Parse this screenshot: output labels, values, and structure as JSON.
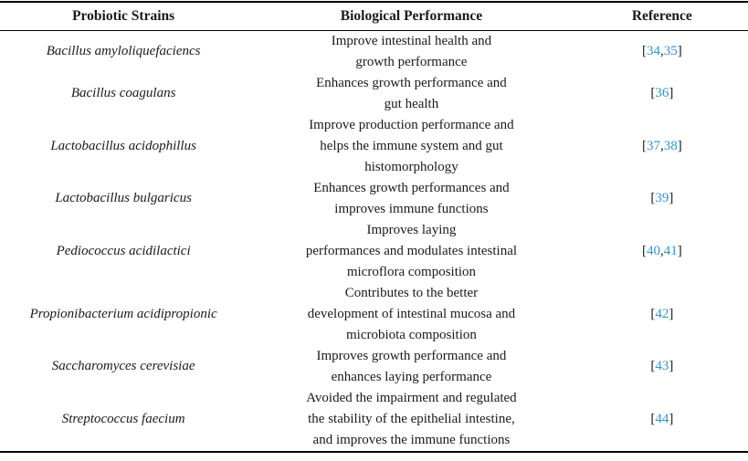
{
  "table": {
    "link_color": "#2e96d1",
    "headers": [
      "Probiotic Strains",
      "Biological Performance",
      "Reference"
    ],
    "rows": [
      {
        "strain": "Bacillus amyloliquefaciencs",
        "performance": "Improve intestinal health and\ngrowth performance",
        "references": [
          "34",
          "35"
        ]
      },
      {
        "strain": "Bacillus coagulans",
        "performance": "Enhances growth performance and\ngut health",
        "references": [
          "36"
        ]
      },
      {
        "strain": "Lactobacillus acidophillus",
        "performance": "Improve production performance and\nhelps the immune system and gut\nhistomorphology",
        "references": [
          "37",
          "38"
        ]
      },
      {
        "strain": "Lactobacillus bulgaricus",
        "performance": "Enhances growth performances and\nimproves immune functions",
        "references": [
          "39"
        ]
      },
      {
        "strain": "Pediococcus acidilactici",
        "performance": "Improves laying\nperformances and modulates intestinal\nmicroflora composition",
        "references": [
          "40",
          "41"
        ]
      },
      {
        "strain": "Propionibacterium acidipropionic",
        "performance": "Contributes to the better\ndevelopment of intestinal mucosa and\nmicrobiota composition",
        "references": [
          "42"
        ]
      },
      {
        "strain": "Saccharomyces cerevisiae",
        "performance": "Improves growth performance and\nenhances laying performance",
        "references": [
          "43"
        ]
      },
      {
        "strain": "Streptococcus faecium",
        "performance": "Avoided the impairment and regulated\nthe stability of the epithelial intestine,\nand improves the immune functions",
        "references": [
          "44"
        ]
      }
    ]
  }
}
